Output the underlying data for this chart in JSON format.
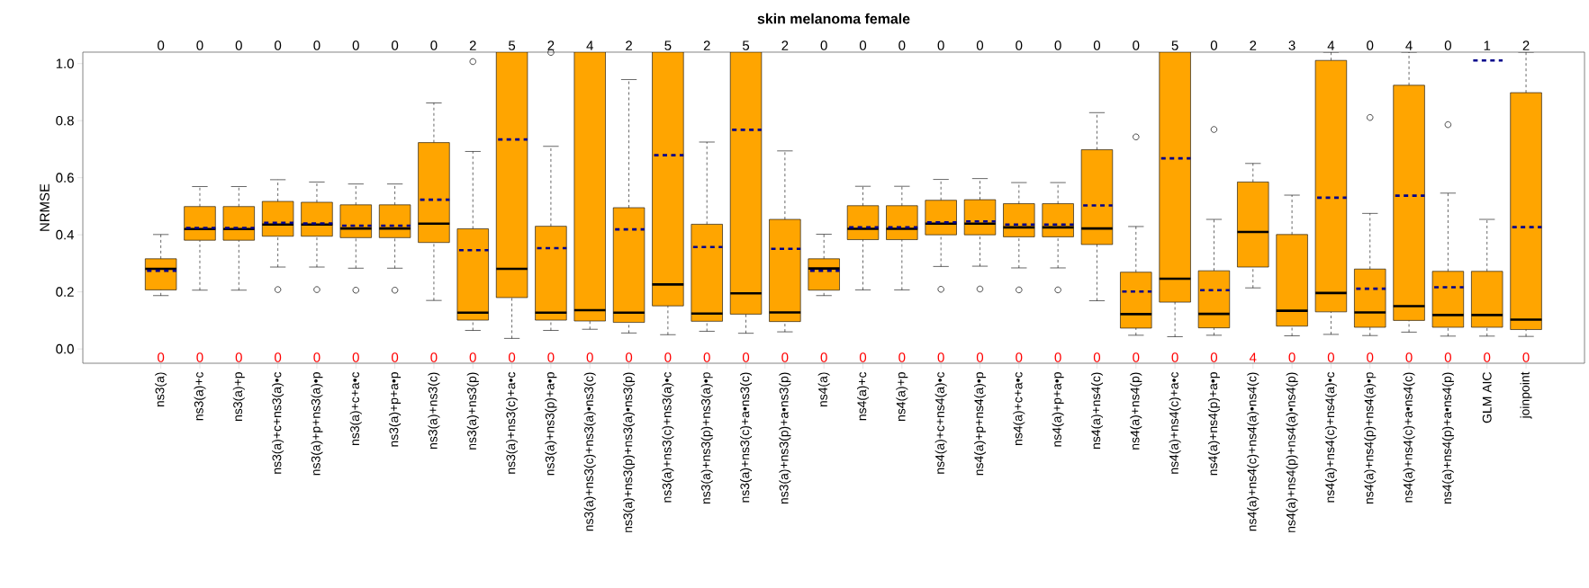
{
  "chart_data": {
    "type": "box",
    "title": "skin melanoma female",
    "ylabel": "NRMSE",
    "categories": [
      "ns3(a)",
      "ns3(a)+c",
      "ns3(a)+p",
      "ns3(a)+c+ns3(a)•c",
      "ns3(a)+p+ns3(a)•p",
      "ns3(a)+c+a•c",
      "ns3(a)+p+a•p",
      "ns3(a)+ns3(c)",
      "ns3(a)+ns3(p)",
      "ns3(a)+ns3(c)+a•c",
      "ns3(a)+ns3(p)+a•p",
      "ns3(a)+ns3(c)+ns3(a)•ns3(c)",
      "ns3(a)+ns3(p)+ns3(a)•ns3(p)",
      "ns3(a)+ns3(c)+ns3(a)•c",
      "ns3(a)+ns3(p)+ns3(a)•p",
      "ns3(a)+ns3(c)+a•ns3(c)",
      "ns3(a)+ns3(p)+a•ns3(p)",
      "ns4(a)",
      "ns4(a)+c",
      "ns4(a)+p",
      "ns4(a)+c+ns4(a)•c",
      "ns4(a)+p+ns4(a)•p",
      "ns4(a)+c+a•c",
      "ns4(a)+p+a•p",
      "ns4(a)+ns4(c)",
      "ns4(a)+ns4(p)",
      "ns4(a)+ns4(c)+a•c",
      "ns4(a)+ns4(p)+a•p",
      "ns4(a)+ns4(c)+ns4(a)•ns4(c)",
      "ns4(a)+ns4(p)+ns4(a)•ns4(p)",
      "ns4(a)+ns4(c)+ns4(a)•c",
      "ns4(a)+ns4(p)+ns4(a)•p",
      "ns4(a)+ns4(c)+a•ns4(c)",
      "ns4(a)+ns4(p)+a•ns4(p)",
      "GLM AIC",
      "joinpoint"
    ],
    "ylim": [
      -0.05,
      1.04
    ],
    "yticks": [
      {
        "value": 0,
        "label": "0.0"
      },
      0.2,
      0.4,
      0.6,
      0.8,
      {
        "value": 1,
        "label": "1.0"
      }
    ],
    "series": [
      {
        "color": "#ffa500",
        "boxes": [
          {
            "low": 0.187,
            "q1": 0.207,
            "median": 0.281,
            "q3": 0.316,
            "high": 0.401,
            "mean": 0.274
          },
          {
            "low": 0.206,
            "q1": 0.381,
            "median": 0.42,
            "q3": 0.499,
            "high": 0.569,
            "mean": 0.424
          },
          {
            "low": 0.206,
            "q1": 0.381,
            "median": 0.42,
            "q3": 0.499,
            "high": 0.569,
            "mean": 0.424
          },
          {
            "low": 0.287,
            "q1": 0.395,
            "median": 0.436,
            "q3": 0.517,
            "high": 0.593,
            "mean": 0.442,
            "outliers": [
              0.208
            ]
          },
          {
            "low": 0.287,
            "q1": 0.395,
            "median": 0.436,
            "q3": 0.514,
            "high": 0.585,
            "mean": 0.44,
            "outliers": [
              0.208
            ]
          },
          {
            "low": 0.283,
            "q1": 0.39,
            "median": 0.422,
            "q3": 0.505,
            "high": 0.578,
            "mean": 0.432,
            "outliers": [
              0.206
            ]
          },
          {
            "low": 0.283,
            "q1": 0.39,
            "median": 0.422,
            "q3": 0.505,
            "high": 0.578,
            "mean": 0.432,
            "outliers": [
              0.206
            ]
          },
          {
            "low": 0.17,
            "q1": 0.373,
            "median": 0.439,
            "q3": 0.723,
            "high": 0.862,
            "mean": 0.523
          },
          {
            "low": 0.065,
            "q1": 0.101,
            "median": 0.127,
            "q3": 0.421,
            "high": 0.692,
            "mean": 0.346,
            "outliers": [
              1.007
            ]
          },
          {
            "low": 0.037,
            "q1": 0.18,
            "median": 0.281,
            "q3": 1.04,
            "high": 1.04,
            "mean": 0.734
          },
          {
            "low": 0.065,
            "q1": 0.101,
            "median": 0.127,
            "q3": 0.43,
            "high": 0.71,
            "mean": 0.353,
            "outliers": [
              1.039
            ]
          },
          {
            "low": 0.069,
            "q1": 0.098,
            "median": 0.136,
            "q3": 1.04,
            "high": 1.04
          },
          {
            "low": 0.056,
            "q1": 0.093,
            "median": 0.127,
            "q3": 0.495,
            "high": 0.944,
            "mean": 0.419
          },
          {
            "low": 0.05,
            "q1": 0.151,
            "median": 0.226,
            "q3": 1.04,
            "high": 1.04,
            "mean": 0.679
          },
          {
            "low": 0.062,
            "q1": 0.097,
            "median": 0.124,
            "q3": 0.437,
            "high": 0.725,
            "mean": 0.357
          },
          {
            "low": 0.055,
            "q1": 0.122,
            "median": 0.195,
            "q3": 1.04,
            "high": 1.04,
            "mean": 0.768
          },
          {
            "low": 0.06,
            "q1": 0.096,
            "median": 0.128,
            "q3": 0.454,
            "high": 0.694,
            "mean": 0.351
          },
          {
            "low": 0.187,
            "q1": 0.206,
            "median": 0.282,
            "q3": 0.316,
            "high": 0.402,
            "mean": 0.274
          },
          {
            "low": 0.207,
            "q1": 0.383,
            "median": 0.421,
            "q3": 0.502,
            "high": 0.57,
            "mean": 0.426
          },
          {
            "low": 0.207,
            "q1": 0.383,
            "median": 0.421,
            "q3": 0.502,
            "high": 0.57,
            "mean": 0.426
          },
          {
            "low": 0.289,
            "q1": 0.4,
            "median": 0.439,
            "q3": 0.521,
            "high": 0.594,
            "mean": 0.444,
            "outliers": [
              0.209
            ]
          },
          {
            "low": 0.29,
            "q1": 0.4,
            "median": 0.439,
            "q3": 0.523,
            "high": 0.597,
            "mean": 0.447,
            "outliers": [
              0.21
            ]
          },
          {
            "low": 0.284,
            "q1": 0.393,
            "median": 0.426,
            "q3": 0.509,
            "high": 0.583,
            "mean": 0.436,
            "outliers": [
              0.207
            ]
          },
          {
            "low": 0.284,
            "q1": 0.393,
            "median": 0.426,
            "q3": 0.509,
            "high": 0.583,
            "mean": 0.436,
            "outliers": [
              0.207
            ]
          },
          {
            "low": 0.169,
            "q1": 0.366,
            "median": 0.422,
            "q3": 0.698,
            "high": 0.828,
            "mean": 0.503
          },
          {
            "low": 0.048,
            "q1": 0.073,
            "median": 0.122,
            "q3": 0.269,
            "high": 0.429,
            "mean": 0.201,
            "outliers": [
              0.743
            ]
          },
          {
            "low": 0.043,
            "q1": 0.164,
            "median": 0.246,
            "q3": 1.04,
            "high": 1.04,
            "mean": 0.668
          },
          {
            "low": 0.048,
            "q1": 0.074,
            "median": 0.123,
            "q3": 0.274,
            "high": 0.454,
            "mean": 0.206,
            "outliers": [
              0.769
            ]
          },
          {
            "low": 0.214,
            "q1": 0.287,
            "median": 0.41,
            "q3": 0.585,
            "high": 0.65
          },
          {
            "low": 0.046,
            "q1": 0.08,
            "median": 0.134,
            "q3": 0.401,
            "high": 0.539
          },
          {
            "low": 0.051,
            "q1": 0.13,
            "median": 0.196,
            "q3": 1.011,
            "high": 1.04,
            "mean": 0.53
          },
          {
            "low": 0.047,
            "q1": 0.076,
            "median": 0.128,
            "q3": 0.28,
            "high": 0.475,
            "mean": 0.211,
            "outliers": [
              0.811
            ]
          },
          {
            "low": 0.059,
            "q1": 0.1,
            "median": 0.15,
            "q3": 0.924,
            "high": 1.04,
            "mean": 0.537
          },
          {
            "low": 0.045,
            "q1": 0.076,
            "median": 0.119,
            "q3": 0.272,
            "high": 0.546,
            "mean": 0.216,
            "outliers": [
              0.786
            ]
          },
          {
            "low": 0.045,
            "q1": 0.076,
            "median": 0.119,
            "q3": 0.272,
            "high": 0.454,
            "mean": 1.011
          },
          {
            "low": 0.044,
            "q1": 0.068,
            "median": 0.103,
            "q3": 0.898,
            "high": 1.04,
            "mean": 0.427
          }
        ]
      }
    ],
    "annotations": [
      "0",
      "0",
      "0",
      "0",
      "0",
      "0",
      "0",
      "0",
      "2",
      "5",
      "2",
      "4",
      "2",
      "5",
      "2",
      "5",
      "2",
      "0",
      "0",
      "0",
      "0",
      "0",
      "0",
      "0",
      "0",
      "0",
      "5",
      "0",
      "2",
      "3",
      "4",
      "0",
      "4",
      "0",
      "1",
      "2",
      "0",
      "0",
      "0",
      "0",
      "0",
      "0",
      "0",
      "0",
      "0",
      "0",
      "0",
      "0",
      "0",
      "0",
      "0",
      "0",
      "0",
      "0",
      "0",
      "0",
      "0",
      "0",
      "0",
      "0",
      "0",
      "0",
      "0",
      "0",
      "4",
      "0",
      "0",
      "0",
      "0",
      "0",
      "0",
      "0"
    ]
  }
}
